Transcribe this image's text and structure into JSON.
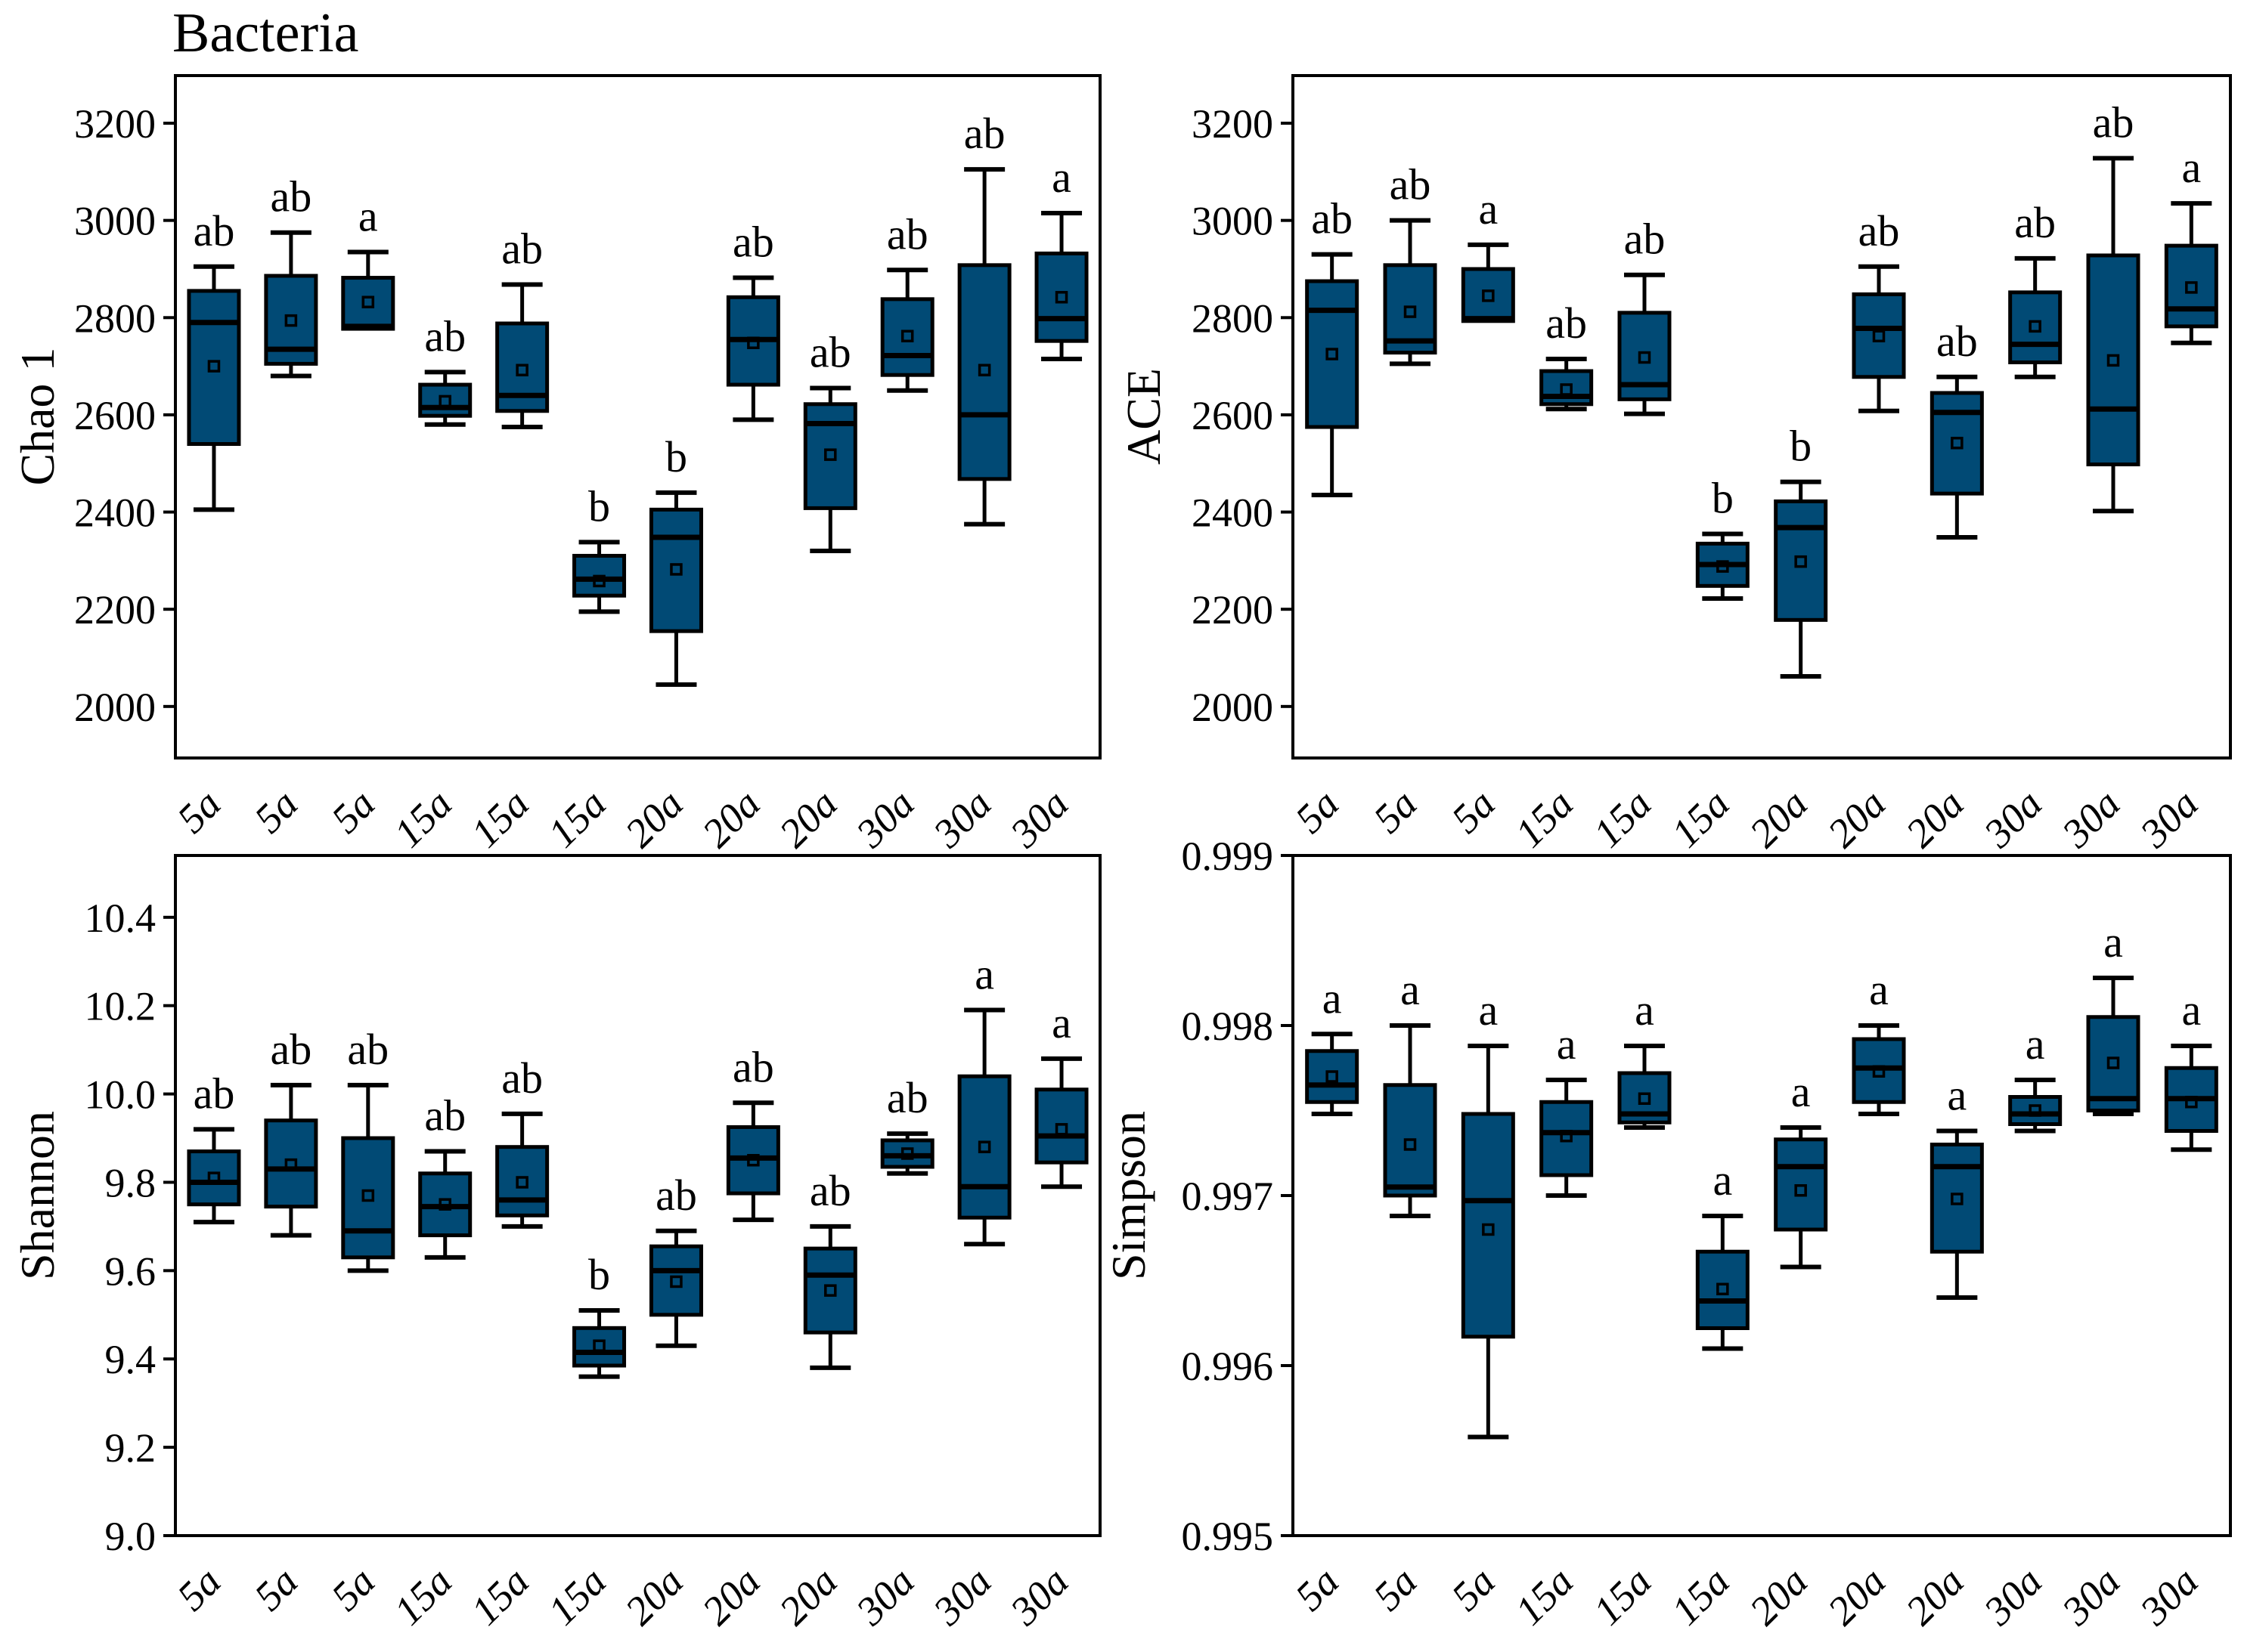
{
  "figure": {
    "title": "Bacteria"
  },
  "colors": {
    "box_fill": "#014A75",
    "line": "#000000"
  },
  "categories": [
    "5a",
    "5a",
    "5a",
    "15a",
    "15a",
    "15a",
    "20a",
    "20a",
    "20a",
    "30a",
    "30a",
    "30a"
  ],
  "chart_data": [
    {
      "type": "box",
      "id": "chao1",
      "title": "Bacteria",
      "ylabel": "Chao 1",
      "ylim": [
        1894,
        3298
      ],
      "yticks": [
        2000,
        2200,
        2400,
        2600,
        2800,
        3000,
        3200
      ],
      "ytick_labels": [
        "2000",
        "2200",
        "2400",
        "2600",
        "2800",
        "3000",
        "3200"
      ],
      "categories": [
        "5a",
        "5a",
        "5a",
        "15a",
        "15a",
        "15a",
        "20a",
        "20a",
        "20a",
        "30a",
        "30a",
        "30a"
      ],
      "boxes": [
        {
          "label": "5a",
          "letter": "ab",
          "low": 2405,
          "q1": 2540,
          "median": 2790,
          "mean": 2700,
          "q3": 2855,
          "high": 2905
        },
        {
          "label": "5a",
          "letter": "ab",
          "low": 2680,
          "q1": 2705,
          "median": 2735,
          "mean": 2794,
          "q3": 2886,
          "high": 2975
        },
        {
          "label": "5a",
          "letter": "a",
          "low": 2777,
          "q1": 2777,
          "median": 2782,
          "mean": 2832,
          "q3": 2882,
          "high": 2935
        },
        {
          "label": "15a",
          "letter": "ab",
          "low": 2580,
          "q1": 2598,
          "median": 2615,
          "mean": 2628,
          "q3": 2662,
          "high": 2688
        },
        {
          "label": "15a",
          "letter": "ab",
          "low": 2575,
          "q1": 2608,
          "median": 2640,
          "mean": 2692,
          "q3": 2788,
          "high": 2868
        },
        {
          "label": "15a",
          "letter": "b",
          "low": 2195,
          "q1": 2228,
          "median": 2262,
          "mean": 2258,
          "q3": 2310,
          "high": 2338
        },
        {
          "label": "20a",
          "letter": "b",
          "low": 2045,
          "q1": 2155,
          "median": 2348,
          "mean": 2282,
          "q3": 2405,
          "high": 2440
        },
        {
          "label": "20a",
          "letter": "ab",
          "low": 2590,
          "q1": 2662,
          "median": 2755,
          "mean": 2748,
          "q3": 2842,
          "high": 2882
        },
        {
          "label": "20a",
          "letter": "ab",
          "low": 2320,
          "q1": 2408,
          "median": 2582,
          "mean": 2518,
          "q3": 2622,
          "high": 2655
        },
        {
          "label": "30a",
          "letter": "ab",
          "low": 2650,
          "q1": 2682,
          "median": 2722,
          "mean": 2762,
          "q3": 2838,
          "high": 2898
        },
        {
          "label": "30a",
          "letter": "ab",
          "low": 2375,
          "q1": 2468,
          "median": 2600,
          "mean": 2692,
          "q3": 2908,
          "high": 3105
        },
        {
          "label": "30a",
          "letter": "a",
          "low": 2715,
          "q1": 2752,
          "median": 2798,
          "mean": 2842,
          "q3": 2932,
          "high": 3015
        }
      ]
    },
    {
      "type": "box",
      "id": "ace",
      "ylabel": "ACE",
      "ylim": [
        1894,
        3298
      ],
      "yticks": [
        2000,
        2200,
        2400,
        2600,
        2800,
        3000,
        3200
      ],
      "ytick_labels": [
        "2000",
        "2200",
        "2400",
        "2600",
        "2800",
        "3000",
        "3200"
      ],
      "categories": [
        "5a",
        "5a",
        "5a",
        "15a",
        "15a",
        "15a",
        "20a",
        "20a",
        "20a",
        "30a",
        "30a",
        "30a"
      ],
      "boxes": [
        {
          "label": "5a",
          "letter": "ab",
          "low": 2435,
          "q1": 2575,
          "median": 2815,
          "mean": 2725,
          "q3": 2875,
          "high": 2930
        },
        {
          "label": "5a",
          "letter": "ab",
          "low": 2705,
          "q1": 2728,
          "median": 2752,
          "mean": 2812,
          "q3": 2908,
          "high": 3000
        },
        {
          "label": "5a",
          "letter": "a",
          "low": 2793,
          "q1": 2793,
          "median": 2798,
          "mean": 2845,
          "q3": 2900,
          "high": 2950
        },
        {
          "label": "15a",
          "letter": "ab",
          "low": 2612,
          "q1": 2622,
          "median": 2638,
          "mean": 2652,
          "q3": 2690,
          "high": 2715
        },
        {
          "label": "15a",
          "letter": "ab",
          "low": 2602,
          "q1": 2632,
          "median": 2662,
          "mean": 2718,
          "q3": 2810,
          "high": 2888
        },
        {
          "label": "15a",
          "letter": "b",
          "low": 2222,
          "q1": 2248,
          "median": 2292,
          "mean": 2288,
          "q3": 2335,
          "high": 2355
        },
        {
          "label": "20a",
          "letter": "b",
          "low": 2062,
          "q1": 2178,
          "median": 2368,
          "mean": 2298,
          "q3": 2422,
          "high": 2462
        },
        {
          "label": "20a",
          "letter": "ab",
          "low": 2608,
          "q1": 2678,
          "median": 2778,
          "mean": 2762,
          "q3": 2848,
          "high": 2905
        },
        {
          "label": "20a",
          "letter": "ab",
          "low": 2348,
          "q1": 2438,
          "median": 2605,
          "mean": 2542,
          "q3": 2645,
          "high": 2678
        },
        {
          "label": "30a",
          "letter": "ab",
          "low": 2678,
          "q1": 2708,
          "median": 2745,
          "mean": 2782,
          "q3": 2852,
          "high": 2922
        },
        {
          "label": "30a",
          "letter": "ab",
          "low": 2402,
          "q1": 2498,
          "median": 2612,
          "mean": 2712,
          "q3": 2928,
          "high": 3128
        },
        {
          "label": "30a",
          "letter": "a",
          "low": 2748,
          "q1": 2782,
          "median": 2818,
          "mean": 2862,
          "q3": 2948,
          "high": 3035
        }
      ]
    },
    {
      "type": "box",
      "id": "shannon",
      "ylabel": "Shannon",
      "ylim": [
        9.0,
        10.54
      ],
      "yticks": [
        9.0,
        9.2,
        9.4,
        9.6,
        9.8,
        10.0,
        10.2,
        10.4
      ],
      "ytick_labels": [
        "9.0",
        "9.2",
        "9.4",
        "9.6",
        "9.8",
        "10.0",
        "10.2",
        "10.4"
      ],
      "categories": [
        "5a",
        "5a",
        "5a",
        "15a",
        "15a",
        "15a",
        "20a",
        "20a",
        "20a",
        "30a",
        "30a",
        "30a"
      ],
      "boxes": [
        {
          "label": "5a",
          "letter": "ab",
          "low": 9.71,
          "q1": 9.75,
          "median": 9.8,
          "mean": 9.81,
          "q3": 9.87,
          "high": 9.92
        },
        {
          "label": "5a",
          "letter": "ab",
          "low": 9.68,
          "q1": 9.745,
          "median": 9.83,
          "mean": 9.84,
          "q3": 9.94,
          "high": 10.02
        },
        {
          "label": "5a",
          "letter": "ab",
          "low": 9.6,
          "q1": 9.63,
          "median": 9.69,
          "mean": 9.77,
          "q3": 9.9,
          "high": 10.02
        },
        {
          "label": "15a",
          "letter": "ab",
          "low": 9.63,
          "q1": 9.68,
          "median": 9.745,
          "mean": 9.75,
          "q3": 9.82,
          "high": 9.87
        },
        {
          "label": "15a",
          "letter": "ab",
          "low": 9.7,
          "q1": 9.725,
          "median": 9.76,
          "mean": 9.8,
          "q3": 9.88,
          "high": 9.955
        },
        {
          "label": "15a",
          "letter": "b",
          "low": 9.36,
          "q1": 9.385,
          "median": 9.415,
          "mean": 9.43,
          "q3": 9.47,
          "high": 9.51
        },
        {
          "label": "20a",
          "letter": "ab",
          "low": 9.43,
          "q1": 9.5,
          "median": 9.6,
          "mean": 9.575,
          "q3": 9.655,
          "high": 9.69
        },
        {
          "label": "20a",
          "letter": "ab",
          "low": 9.715,
          "q1": 9.775,
          "median": 9.855,
          "mean": 9.85,
          "q3": 9.925,
          "high": 9.98
        },
        {
          "label": "20a",
          "letter": "ab",
          "low": 9.38,
          "q1": 9.46,
          "median": 9.59,
          "mean": 9.555,
          "q3": 9.65,
          "high": 9.7
        },
        {
          "label": "30a",
          "letter": "ab",
          "low": 9.82,
          "q1": 9.835,
          "median": 9.86,
          "mean": 9.865,
          "q3": 9.895,
          "high": 9.91
        },
        {
          "label": "30a",
          "letter": "a",
          "low": 9.66,
          "q1": 9.72,
          "median": 9.79,
          "mean": 9.88,
          "q3": 10.04,
          "high": 10.19
        },
        {
          "label": "30a",
          "letter": "a",
          "low": 9.79,
          "q1": 9.845,
          "median": 9.905,
          "mean": 9.92,
          "q3": 10.01,
          "high": 10.08
        }
      ]
    },
    {
      "type": "box",
      "id": "simpson",
      "ylabel": "Simpson",
      "ylim": [
        0.995,
        0.999
      ],
      "yticks": [
        0.995,
        0.996,
        0.997,
        0.998,
        0.999
      ],
      "ytick_labels": [
        "0.995",
        "0.996",
        "0.997",
        "0.998",
        "0.999"
      ],
      "categories": [
        "5a",
        "5a",
        "5a",
        "15a",
        "15a",
        "15a",
        "20a",
        "20a",
        "20a",
        "30a",
        "30a",
        "30a"
      ],
      "boxes": [
        {
          "label": "5a",
          "letter": "a",
          "low": 0.99748,
          "q1": 0.99755,
          "median": 0.99765,
          "mean": 0.9977,
          "q3": 0.99785,
          "high": 0.99795
        },
        {
          "label": "5a",
          "letter": "a",
          "low": 0.99688,
          "q1": 0.997,
          "median": 0.99705,
          "mean": 0.9973,
          "q3": 0.99765,
          "high": 0.998
        },
        {
          "label": "5a",
          "letter": "a",
          "low": 0.99558,
          "q1": 0.99617,
          "median": 0.99697,
          "mean": 0.9968,
          "q3": 0.99748,
          "high": 0.99788
        },
        {
          "label": "15a",
          "letter": "a",
          "low": 0.997,
          "q1": 0.99712,
          "median": 0.99737,
          "mean": 0.99735,
          "q3": 0.99755,
          "high": 0.99768
        },
        {
          "label": "15a",
          "letter": "a",
          "low": 0.9974,
          "q1": 0.99743,
          "median": 0.99748,
          "mean": 0.99757,
          "q3": 0.99772,
          "high": 0.99788
        },
        {
          "label": "15a",
          "letter": "a",
          "low": 0.9961,
          "q1": 0.99622,
          "median": 0.99638,
          "mean": 0.99645,
          "q3": 0.99667,
          "high": 0.99688
        },
        {
          "label": "20a",
          "letter": "a",
          "low": 0.99658,
          "q1": 0.9968,
          "median": 0.99717,
          "mean": 0.99703,
          "q3": 0.99733,
          "high": 0.9974
        },
        {
          "label": "20a",
          "letter": "a",
          "low": 0.99748,
          "q1": 0.99755,
          "median": 0.99775,
          "mean": 0.99773,
          "q3": 0.99792,
          "high": 0.998
        },
        {
          "label": "20a",
          "letter": "a",
          "low": 0.9964,
          "q1": 0.99667,
          "median": 0.99717,
          "mean": 0.99698,
          "q3": 0.9973,
          "high": 0.99738
        },
        {
          "label": "30a",
          "letter": "a",
          "low": 0.99738,
          "q1": 0.99742,
          "median": 0.99748,
          "mean": 0.9975,
          "q3": 0.99758,
          "high": 0.99768
        },
        {
          "label": "30a",
          "letter": "a",
          "low": 0.99748,
          "q1": 0.9975,
          "median": 0.99757,
          "mean": 0.99778,
          "q3": 0.99805,
          "high": 0.99828
        },
        {
          "label": "30a",
          "letter": "a",
          "low": 0.99727,
          "q1": 0.99738,
          "median": 0.99757,
          "mean": 0.99755,
          "q3": 0.99775,
          "high": 0.99788
        }
      ]
    }
  ]
}
